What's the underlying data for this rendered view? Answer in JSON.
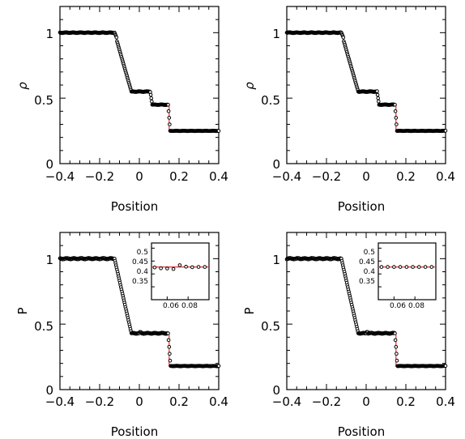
{
  "chart_data": [
    {
      "id": "density-left",
      "type": "scatter",
      "xlabel": "Position",
      "ylabel": "ρ",
      "xlim": [
        -0.4,
        0.4
      ],
      "ylim": [
        0,
        1.2
      ],
      "xticks": [
        "−0.4",
        "−0.2",
        "0",
        "0.2",
        "0.4"
      ],
      "yticks": [
        "0",
        "0.5",
        "1"
      ],
      "series": [
        {
          "kind": "exact",
          "x": [
            -0.4,
            -0.125,
            -0.04,
            0.06,
            0.06,
            0.15,
            0.15,
            0.4
          ],
          "y": [
            1.0,
            1.0,
            0.55,
            0.55,
            0.45,
            0.45,
            0.25,
            0.25
          ]
        }
      ]
    },
    {
      "id": "density-right",
      "type": "scatter",
      "xlabel": "Position",
      "ylabel": "ρ",
      "xlim": [
        -0.4,
        0.4
      ],
      "ylim": [
        0,
        1.2
      ],
      "xticks": [
        "−0.4",
        "−0.2",
        "0",
        "0.2",
        "0.4"
      ],
      "yticks": [
        "0",
        "0.5",
        "1"
      ],
      "series": [
        {
          "kind": "exact",
          "x": [
            -0.4,
            -0.125,
            -0.04,
            0.06,
            0.06,
            0.15,
            0.15,
            0.4
          ],
          "y": [
            1.0,
            1.0,
            0.55,
            0.55,
            0.45,
            0.45,
            0.25,
            0.25
          ]
        }
      ]
    },
    {
      "id": "pressure-left",
      "type": "scatter",
      "xlabel": "Position",
      "ylabel": "P",
      "xlim": [
        -0.4,
        0.4
      ],
      "ylim": [
        0,
        1.2
      ],
      "xticks": [
        "−0.4",
        "−0.2",
        "0",
        "0.2",
        "0.4"
      ],
      "yticks": [
        "0",
        "0.5",
        "1"
      ],
      "series": [
        {
          "kind": "exact",
          "x": [
            -0.4,
            -0.125,
            -0.04,
            0.15,
            0.15,
            0.4
          ],
          "y": [
            1.0,
            1.0,
            0.43,
            0.43,
            0.18,
            0.18
          ]
        }
      ],
      "inset": {
        "xlim": [
          0.045,
          0.1
        ],
        "ylim": [
          0.3,
          0.52
        ],
        "xticks": [
          "0.06",
          "0.08"
        ],
        "yticks": [
          "0.35",
          "0.4",
          "0.45",
          "0.5"
        ],
        "exact_y": 0.427,
        "points": {
          "x": [
            0.048,
            0.054,
            0.06,
            0.066,
            0.072,
            0.078,
            0.084,
            0.09,
            0.096
          ],
          "y": [
            0.425,
            0.422,
            0.421,
            0.419,
            0.434,
            0.428,
            0.426,
            0.427,
            0.427
          ]
        }
      }
    },
    {
      "id": "pressure-right",
      "type": "scatter",
      "xlabel": "Position",
      "ylabel": "P",
      "xlim": [
        -0.4,
        0.4
      ],
      "ylim": [
        0,
        1.2
      ],
      "xticks": [
        "−0.4",
        "−0.2",
        "0",
        "0.2",
        "0.4"
      ],
      "yticks": [
        "0",
        "0.5",
        "1"
      ],
      "series": [
        {
          "kind": "exact",
          "x": [
            -0.4,
            -0.125,
            -0.04,
            0.15,
            0.15,
            0.4
          ],
          "y": [
            1.0,
            1.0,
            0.43,
            0.43,
            0.18,
            0.18
          ]
        }
      ],
      "inset": {
        "xlim": [
          0.045,
          0.1
        ],
        "ylim": [
          0.3,
          0.52
        ],
        "xticks": [
          "0.06",
          "0.08"
        ],
        "yticks": [
          "0.35",
          "0.4",
          "0.45",
          "0.5"
        ],
        "exact_y": 0.427,
        "points": {
          "x": [
            0.048,
            0.054,
            0.06,
            0.066,
            0.072,
            0.078,
            0.084,
            0.09,
            0.096
          ],
          "y": [
            0.427,
            0.427,
            0.427,
            0.427,
            0.427,
            0.427,
            0.427,
            0.427,
            0.427
          ]
        }
      }
    }
  ]
}
